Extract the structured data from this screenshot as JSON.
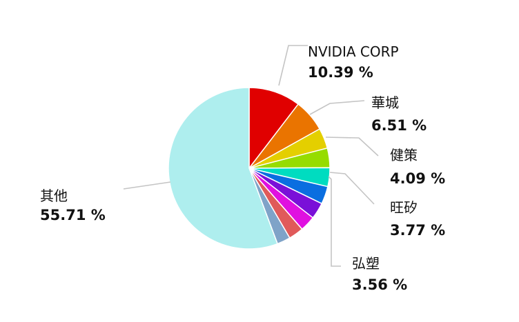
{
  "chart_data": {
    "type": "pie",
    "title": "",
    "slices": [
      {
        "label": "NVIDIA CORP",
        "value": 10.39,
        "pct_text": "10.39 %",
        "color": "#e00000",
        "labeled": true
      },
      {
        "label": "華城",
        "value": 6.51,
        "pct_text": "6.51 %",
        "color": "#ea7400",
        "labeled": true
      },
      {
        "label": "健策",
        "value": 4.09,
        "pct_text": "4.09 %",
        "color": "#e4cf00",
        "labeled": true
      },
      {
        "label": "",
        "value": 3.9,
        "pct_text": "",
        "color": "#96dc00",
        "labeled": false
      },
      {
        "label": "旺矽",
        "value": 3.77,
        "pct_text": "3.77 %",
        "color": "#00dcc0",
        "labeled": true
      },
      {
        "label": "弘塑",
        "value": 3.56,
        "pct_text": "3.56 %",
        "color": "#0a6ee0",
        "labeled": true
      },
      {
        "label": "",
        "value": 3.3,
        "pct_text": "",
        "color": "#7a10d8",
        "labeled": false
      },
      {
        "label": "",
        "value": 3.1,
        "pct_text": "",
        "color": "#e010e0",
        "labeled": false
      },
      {
        "label": "",
        "value": 3.0,
        "pct_text": "",
        "color": "#e05a5a",
        "labeled": false
      },
      {
        "label": "",
        "value": 2.67,
        "pct_text": "",
        "color": "#7fa3c8",
        "labeled": false
      },
      {
        "label": "其他",
        "value": 55.71,
        "pct_text": "55.71 %",
        "color": "#aeeeee",
        "labeled": true
      }
    ]
  }
}
